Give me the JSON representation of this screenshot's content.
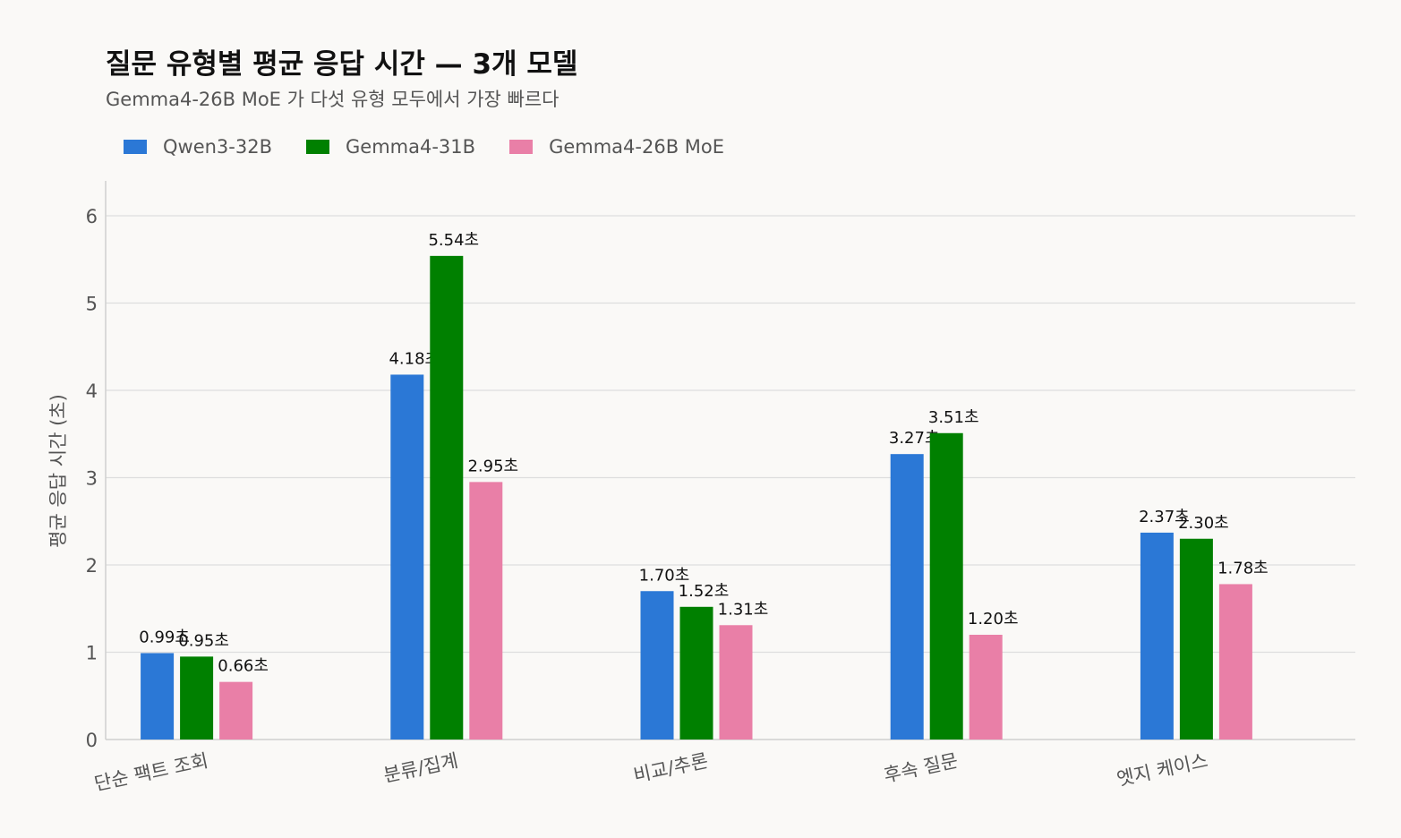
{
  "title": "질문 유형별 평균 응답 시간 — 3개 모델",
  "subtitle": "Gemma4-26B MoE 가 다섯 유형 모두에서 가장 빠르다",
  "chart_data": {
    "type": "bar",
    "categories": [
      "단순 팩트 조회",
      "분류/집계",
      "비교/추론",
      "후속 질문",
      "엣지 케이스"
    ],
    "series": [
      {
        "name": "Qwen3-32B",
        "color": "#2b78d6",
        "values": [
          0.99,
          4.18,
          1.7,
          3.27,
          2.37
        ],
        "labels": [
          "0.99초",
          "4.18초",
          "1.70초",
          "3.27초",
          "2.37초"
        ]
      },
      {
        "name": "Gemma4-31B",
        "color": "#008000",
        "values": [
          0.95,
          5.54,
          1.52,
          3.51,
          2.3
        ],
        "labels": [
          "0.95초",
          "5.54초",
          "1.52초",
          "3.51초",
          "2.30초"
        ]
      },
      {
        "name": "Gemma4-26B MoE",
        "color": "#e97fa7",
        "values": [
          0.66,
          2.95,
          1.31,
          1.2,
          1.78
        ],
        "labels": [
          "0.66초",
          "2.95초",
          "1.31초",
          "1.20초",
          "1.78초"
        ]
      }
    ],
    "ylabel": "평균 응답 시간 (초)",
    "xlabel": "",
    "ylim": [
      0,
      6.4
    ],
    "yticks": [
      "0",
      "1",
      "2",
      "3",
      "4",
      "5",
      "6"
    ],
    "grid": true,
    "legend": "top-left"
  }
}
